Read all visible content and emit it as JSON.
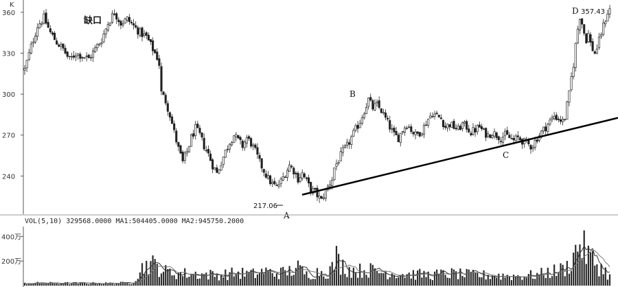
{
  "chart_data": [
    {
      "type": "candlestick",
      "corner_label": "K",
      "ylim": [
        212,
        368
      ],
      "yticks": [
        240,
        270,
        300,
        330,
        360
      ],
      "grid": false,
      "legend": "none",
      "annotations": [
        {
          "id": "gap",
          "label": "缺口"
        },
        {
          "id": "A",
          "label": "A",
          "value": 217.06,
          "value_label": "217.06"
        },
        {
          "id": "B",
          "label": "B"
        },
        {
          "id": "C",
          "label": "C"
        },
        {
          "id": "D",
          "label": "D",
          "value": 357.43,
          "value_label": "357.43"
        }
      ],
      "trendline": {
        "from": [
          0.4889,
          0.2275
        ],
        "to": [
          1.0,
          0.5
        ]
      },
      "path": [
        [
          0,
          318
        ],
        [
          3,
          335
        ],
        [
          6,
          350
        ],
        [
          9,
          356
        ],
        [
          12,
          345
        ],
        [
          15,
          338
        ],
        [
          18,
          333
        ],
        [
          21,
          325
        ],
        [
          24,
          330
        ],
        [
          27,
          328
        ],
        [
          30,
          326
        ],
        [
          33,
          333
        ],
        [
          36,
          340
        ],
        [
          39,
          352
        ],
        [
          42,
          360
        ],
        [
          45,
          352
        ],
        [
          48,
          355
        ],
        [
          51,
          350
        ],
        [
          54,
          345
        ],
        [
          57,
          342
        ],
        [
          59,
          336
        ],
        [
          61,
          330
        ],
        [
          62,
          327
        ],
        [
          63,
          322
        ],
        [
          64,
          301
        ],
        [
          66,
          295
        ],
        [
          68,
          285
        ],
        [
          70,
          272
        ],
        [
          72,
          260
        ],
        [
          74,
          250
        ],
        [
          76,
          258
        ],
        [
          78,
          268
        ],
        [
          80,
          275
        ],
        [
          82,
          270
        ],
        [
          84,
          262
        ],
        [
          86,
          256
        ],
        [
          88,
          248
        ],
        [
          90,
          242
        ],
        [
          92,
          250
        ],
        [
          94,
          258
        ],
        [
          96,
          265
        ],
        [
          98,
          270
        ],
        [
          100,
          266
        ],
        [
          102,
          262
        ],
        [
          104,
          268
        ],
        [
          106,
          264
        ],
        [
          108,
          258
        ],
        [
          110,
          250
        ],
        [
          112,
          244
        ],
        [
          114,
          238
        ],
        [
          116,
          234
        ],
        [
          118,
          232
        ],
        [
          120,
          236
        ],
        [
          122,
          242
        ],
        [
          124,
          248
        ],
        [
          126,
          244
        ],
        [
          128,
          238
        ],
        [
          130,
          242
        ],
        [
          132,
          236
        ],
        [
          134,
          230
        ],
        [
          136,
          228
        ],
        [
          138,
          224
        ],
        [
          139,
          222
        ],
        [
          140,
          226
        ],
        [
          142,
          232
        ],
        [
          144,
          238
        ],
        [
          145,
          246
        ],
        [
          147,
          252
        ],
        [
          149,
          258
        ],
        [
          151,
          262
        ],
        [
          153,
          268
        ],
        [
          155,
          274
        ],
        [
          157,
          280
        ],
        [
          159,
          288
        ],
        [
          161,
          296
        ],
        [
          163,
          290
        ],
        [
          165,
          292
        ],
        [
          167,
          288
        ],
        [
          169,
          282
        ],
        [
          171,
          276
        ],
        [
          173,
          270
        ],
        [
          175,
          268
        ],
        [
          177,
          274
        ],
        [
          179,
          278
        ],
        [
          181,
          274
        ],
        [
          183,
          270
        ],
        [
          185,
          272
        ],
        [
          187,
          276
        ],
        [
          189,
          282
        ],
        [
          191,
          286
        ],
        [
          193,
          284
        ],
        [
          195,
          282
        ],
        [
          197,
          276
        ],
        [
          199,
          278
        ],
        [
          201,
          276
        ],
        [
          203,
          274
        ],
        [
          205,
          278
        ],
        [
          207,
          276
        ],
        [
          209,
          272
        ],
        [
          211,
          274
        ],
        [
          213,
          276
        ],
        [
          215,
          272
        ],
        [
          217,
          270
        ],
        [
          219,
          272
        ],
        [
          221,
          270
        ],
        [
          223,
          268
        ],
        [
          225,
          270
        ],
        [
          227,
          268
        ],
        [
          229,
          266
        ],
        [
          231,
          268
        ],
        [
          233,
          266
        ],
        [
          235,
          264
        ],
        [
          237,
          262
        ],
        [
          238,
          263
        ],
        [
          240,
          268
        ],
        [
          242,
          272
        ],
        [
          244,
          276
        ],
        [
          246,
          280
        ],
        [
          248,
          284
        ],
        [
          250,
          282
        ],
        [
          252,
          280
        ],
        [
          253,
          283
        ],
        [
          254,
          292
        ],
        [
          255,
          300
        ],
        [
          256,
          312
        ],
        [
          257,
          322
        ],
        [
          258,
          336
        ],
        [
          259,
          348
        ],
        [
          260,
          357
        ],
        [
          261,
          352
        ],
        [
          262,
          345
        ],
        [
          263,
          340
        ],
        [
          264,
          344
        ],
        [
          265,
          337
        ],
        [
          266,
          333
        ],
        [
          267,
          330
        ],
        [
          268,
          334
        ],
        [
          269,
          339
        ],
        [
          270,
          345
        ],
        [
          271,
          350
        ],
        [
          272,
          355
        ],
        [
          273,
          360
        ],
        [
          274,
          362
        ]
      ]
    },
    {
      "type": "bar",
      "series_header": "VOL(5,10) 329568.0000 MA1:504405.0000 MA2:945750.2000",
      "yticks": [
        {
          "value": 200,
          "label": "200万"
        },
        {
          "value": 400,
          "label": "400万"
        }
      ],
      "ylim": [
        0,
        480
      ],
      "profile": [
        [
          0,
          22
        ],
        [
          40,
          20
        ],
        [
          50,
          24
        ],
        [
          52,
          70
        ],
        [
          55,
          150
        ],
        [
          58,
          195
        ],
        [
          62,
          165
        ],
        [
          66,
          120
        ],
        [
          72,
          105
        ],
        [
          80,
          100
        ],
        [
          90,
          92
        ],
        [
          100,
          108
        ],
        [
          108,
          98
        ],
        [
          112,
          125
        ],
        [
          116,
          108
        ],
        [
          122,
          112
        ],
        [
          128,
          150
        ],
        [
          132,
          95
        ],
        [
          138,
          120
        ],
        [
          142,
          118
        ],
        [
          144,
          150
        ],
        [
          146,
          240
        ],
        [
          148,
          180
        ],
        [
          152,
          140
        ],
        [
          156,
          125
        ],
        [
          160,
          138
        ],
        [
          166,
          118
        ],
        [
          172,
          108
        ],
        [
          180,
          98
        ],
        [
          190,
          92
        ],
        [
          200,
          102
        ],
        [
          210,
          90
        ],
        [
          220,
          88
        ],
        [
          230,
          82
        ],
        [
          240,
          92
        ],
        [
          246,
          118
        ],
        [
          250,
          128
        ],
        [
          254,
          158
        ],
        [
          256,
          215
        ],
        [
          258,
          290
        ],
        [
          260,
          380
        ],
        [
          262,
          310
        ],
        [
          264,
          260
        ],
        [
          266,
          215
        ],
        [
          268,
          185
        ],
        [
          270,
          150
        ],
        [
          272,
          120
        ],
        [
          274,
          80
        ]
      ]
    }
  ]
}
